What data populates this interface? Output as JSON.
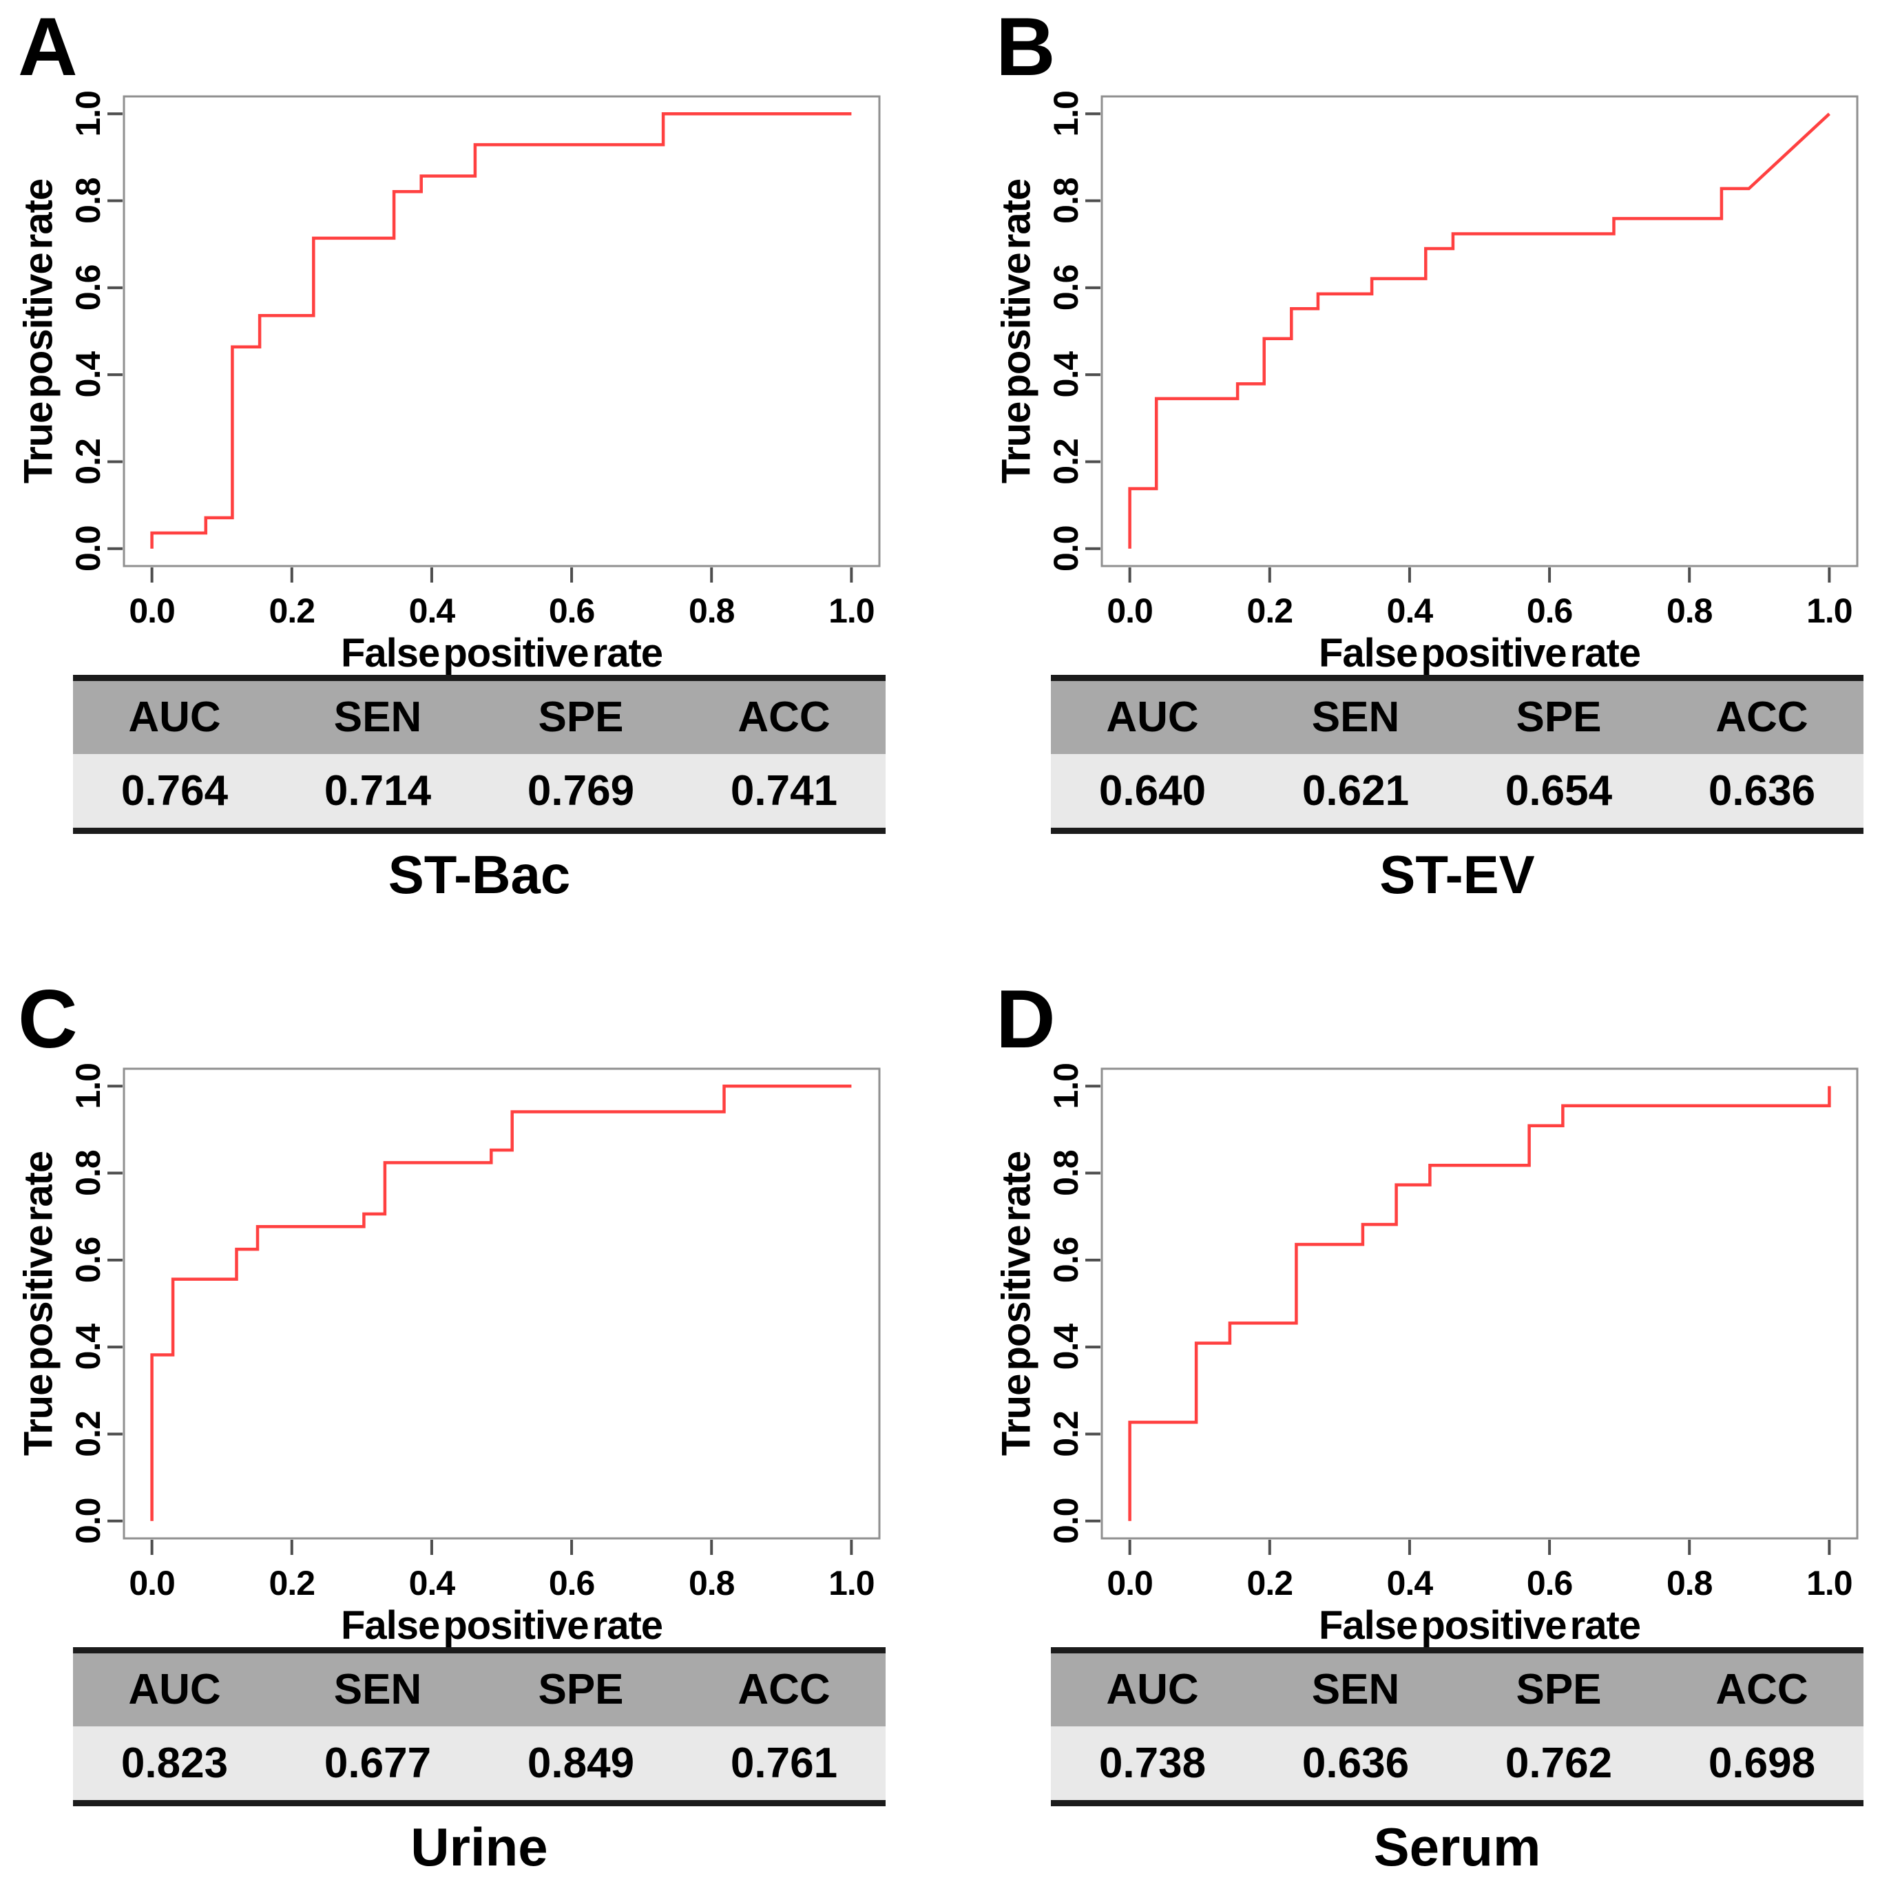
{
  "metric_headers": [
    "AUC",
    "SEN",
    "SPE",
    "ACC"
  ],
  "axis": {
    "xlabel": "False positive rate",
    "ylabel": "True positive rate",
    "x_ticks": [
      "0.0",
      "0.2",
      "0.4",
      "0.6",
      "0.8",
      "1.0"
    ],
    "y_ticks": [
      "0.0",
      "0.2",
      "0.4",
      "0.6",
      "0.8",
      "1.0"
    ]
  },
  "colors": {
    "curve": "#ff4040",
    "box_border": "#8f8f8f",
    "tick": "#4d4d4d",
    "table_header_bg": "#a9a9a9",
    "table_value_bg": "#e9e9e9",
    "table_border": "#1b1b1b",
    "text": "#000000",
    "background": "#ffffff"
  },
  "panels": [
    {
      "label": "A",
      "title": "ST-Bac",
      "values": [
        "0.764",
        "0.714",
        "0.769",
        "0.741"
      ]
    },
    {
      "label": "B",
      "title": "ST-EV",
      "values": [
        "0.640",
        "0.621",
        "0.654",
        "0.636"
      ]
    },
    {
      "label": "C",
      "title": "Urine",
      "values": [
        "0.823",
        "0.677",
        "0.849",
        "0.761"
      ]
    },
    {
      "label": "D",
      "title": "Serum",
      "values": [
        "0.738",
        "0.636",
        "0.762",
        "0.698"
      ]
    }
  ],
  "chart_data": [
    {
      "type": "line",
      "panel": "A",
      "title": "ST-Bac",
      "series_name": "ROC curve",
      "xlabel": "False positive rate",
      "ylabel": "True positive rate",
      "x_ticks": [
        "0.0",
        "0.2",
        "0.4",
        "0.6",
        "0.8",
        "1.0"
      ],
      "y_ticks": [
        "0.0",
        "0.2",
        "0.4",
        "0.6",
        "0.8",
        "1.0"
      ],
      "xlim": [
        -0.04,
        1.04
      ],
      "ylim": [
        -0.04,
        1.04
      ],
      "grid": false,
      "legend": "none",
      "metrics": {
        "AUC": 0.764,
        "SEN": 0.714,
        "SPE": 0.769,
        "ACC": 0.741
      },
      "roc_points": [
        [
          0.0,
          0.0
        ],
        [
          0.0,
          0.036
        ],
        [
          0.077,
          0.036
        ],
        [
          0.077,
          0.071
        ],
        [
          0.115,
          0.071
        ],
        [
          0.115,
          0.464
        ],
        [
          0.154,
          0.464
        ],
        [
          0.154,
          0.536
        ],
        [
          0.231,
          0.536
        ],
        [
          0.231,
          0.714
        ],
        [
          0.346,
          0.714
        ],
        [
          0.346,
          0.821
        ],
        [
          0.385,
          0.821
        ],
        [
          0.385,
          0.857
        ],
        [
          0.462,
          0.857
        ],
        [
          0.462,
          0.929
        ],
        [
          0.731,
          0.929
        ],
        [
          0.731,
          1.0
        ],
        [
          1.0,
          1.0
        ]
      ]
    },
    {
      "type": "line",
      "panel": "B",
      "title": "ST-EV",
      "series_name": "ROC curve",
      "xlabel": "False positive rate",
      "ylabel": "True positive rate",
      "x_ticks": [
        "0.0",
        "0.2",
        "0.4",
        "0.6",
        "0.8",
        "1.0"
      ],
      "y_ticks": [
        "0.0",
        "0.2",
        "0.4",
        "0.6",
        "0.8",
        "1.0"
      ],
      "xlim": [
        -0.04,
        1.04
      ],
      "ylim": [
        -0.04,
        1.04
      ],
      "grid": false,
      "legend": "none",
      "metrics": {
        "AUC": 0.64,
        "SEN": 0.621,
        "SPE": 0.654,
        "ACC": 0.636
      },
      "roc_points": [
        [
          0.0,
          0.0
        ],
        [
          0.0,
          0.138
        ],
        [
          0.038,
          0.138
        ],
        [
          0.038,
          0.345
        ],
        [
          0.154,
          0.345
        ],
        [
          0.154,
          0.379
        ],
        [
          0.192,
          0.379
        ],
        [
          0.192,
          0.483
        ],
        [
          0.231,
          0.483
        ],
        [
          0.231,
          0.552
        ],
        [
          0.269,
          0.552
        ],
        [
          0.269,
          0.586
        ],
        [
          0.346,
          0.586
        ],
        [
          0.346,
          0.621
        ],
        [
          0.423,
          0.621
        ],
        [
          0.423,
          0.69
        ],
        [
          0.462,
          0.69
        ],
        [
          0.462,
          0.724
        ],
        [
          0.692,
          0.724
        ],
        [
          0.692,
          0.759
        ],
        [
          0.846,
          0.759
        ],
        [
          0.846,
          0.828
        ],
        [
          0.885,
          0.828
        ],
        [
          1.0,
          1.0
        ]
      ]
    },
    {
      "type": "line",
      "panel": "C",
      "title": "Urine",
      "series_name": "ROC curve",
      "xlabel": "False positive rate",
      "ylabel": "True positive rate",
      "x_ticks": [
        "0.0",
        "0.2",
        "0.4",
        "0.6",
        "0.8",
        "1.0"
      ],
      "y_ticks": [
        "0.0",
        "0.2",
        "0.4",
        "0.6",
        "0.8",
        "1.0"
      ],
      "xlim": [
        -0.04,
        1.04
      ],
      "ylim": [
        -0.04,
        1.04
      ],
      "grid": false,
      "legend": "none",
      "metrics": {
        "AUC": 0.823,
        "SEN": 0.677,
        "SPE": 0.849,
        "ACC": 0.761
      },
      "roc_points": [
        [
          0.0,
          0.0
        ],
        [
          0.0,
          0.382
        ],
        [
          0.03,
          0.382
        ],
        [
          0.03,
          0.556
        ],
        [
          0.121,
          0.556
        ],
        [
          0.121,
          0.625
        ],
        [
          0.151,
          0.625
        ],
        [
          0.151,
          0.677
        ],
        [
          0.303,
          0.677
        ],
        [
          0.303,
          0.706
        ],
        [
          0.333,
          0.706
        ],
        [
          0.333,
          0.824
        ],
        [
          0.485,
          0.824
        ],
        [
          0.485,
          0.853
        ],
        [
          0.515,
          0.853
        ],
        [
          0.515,
          0.941
        ],
        [
          0.818,
          0.941
        ],
        [
          0.818,
          1.0
        ],
        [
          1.0,
          1.0
        ]
      ]
    },
    {
      "type": "line",
      "panel": "D",
      "title": "Serum",
      "series_name": "ROC curve",
      "xlabel": "False positive rate",
      "ylabel": "True positive rate",
      "x_ticks": [
        "0.0",
        "0.2",
        "0.4",
        "0.6",
        "0.8",
        "1.0"
      ],
      "y_ticks": [
        "0.0",
        "0.2",
        "0.4",
        "0.6",
        "0.8",
        "1.0"
      ],
      "xlim": [
        -0.04,
        1.04
      ],
      "ylim": [
        -0.04,
        1.04
      ],
      "grid": false,
      "legend": "none",
      "metrics": {
        "AUC": 0.738,
        "SEN": 0.636,
        "SPE": 0.762,
        "ACC": 0.698
      },
      "roc_points": [
        [
          0.0,
          0.0
        ],
        [
          0.0,
          0.227
        ],
        [
          0.095,
          0.227
        ],
        [
          0.095,
          0.409
        ],
        [
          0.143,
          0.409
        ],
        [
          0.143,
          0.455
        ],
        [
          0.238,
          0.455
        ],
        [
          0.238,
          0.636
        ],
        [
          0.333,
          0.636
        ],
        [
          0.333,
          0.682
        ],
        [
          0.381,
          0.682
        ],
        [
          0.381,
          0.773
        ],
        [
          0.429,
          0.773
        ],
        [
          0.429,
          0.818
        ],
        [
          0.571,
          0.818
        ],
        [
          0.571,
          0.909
        ],
        [
          0.619,
          0.909
        ],
        [
          0.619,
          0.955
        ],
        [
          1.0,
          0.955
        ],
        [
          1.0,
          1.0
        ]
      ]
    }
  ]
}
